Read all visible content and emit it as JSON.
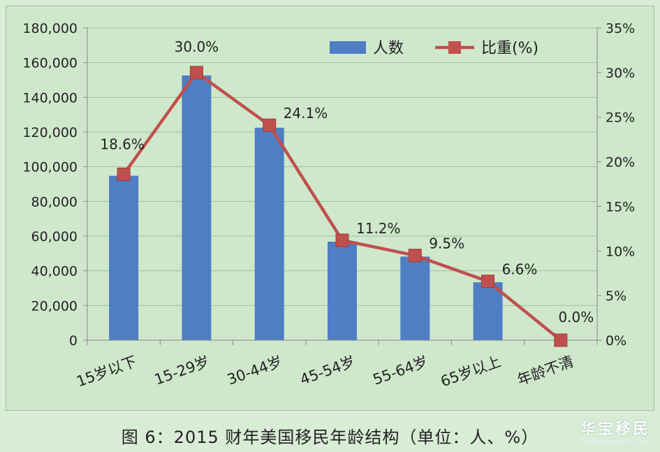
{
  "caption": "图 6：2015 财年美国移民年龄结构（单位：人、%）",
  "watermark": {
    "brand": "华宝移民",
    "site": "www.hbyimin.com"
  },
  "colors": {
    "bar": "#4f7ec4",
    "line": "#c0504d",
    "background": "#cfe8cc",
    "grid": "#9fbf9c"
  },
  "chart_data": {
    "type": "bar",
    "categories": [
      "15岁以下",
      "15-29岁",
      "30-44岁",
      "45-54岁",
      "55-64岁",
      "65岁以上",
      "年龄不清"
    ],
    "series": [
      {
        "name": "人数",
        "type": "bar",
        "axis": "left",
        "values": [
          94800,
          152600,
          122500,
          56800,
          48200,
          33400,
          0
        ]
      },
      {
        "name": "比重(%)",
        "type": "line",
        "axis": "right",
        "values": [
          18.6,
          30.0,
          24.1,
          11.2,
          9.5,
          6.6,
          0.0
        ],
        "labels": [
          "18.6%",
          "30.0%",
          "24.1%",
          "11.2%",
          "9.5%",
          "6.6%",
          "0.0%"
        ]
      }
    ],
    "y_left": {
      "min": 0,
      "max": 180000,
      "ticks": [
        "0",
        "20,000",
        "40,000",
        "60,000",
        "80,000",
        "100,000",
        "120,000",
        "140,000",
        "160,000",
        "180,000"
      ]
    },
    "y_right": {
      "min": 0,
      "max": 35,
      "ticks": [
        "0%",
        "5%",
        "10%",
        "15%",
        "20%",
        "25%",
        "30%",
        "35%"
      ]
    },
    "grid": true,
    "legend": "top-right"
  }
}
